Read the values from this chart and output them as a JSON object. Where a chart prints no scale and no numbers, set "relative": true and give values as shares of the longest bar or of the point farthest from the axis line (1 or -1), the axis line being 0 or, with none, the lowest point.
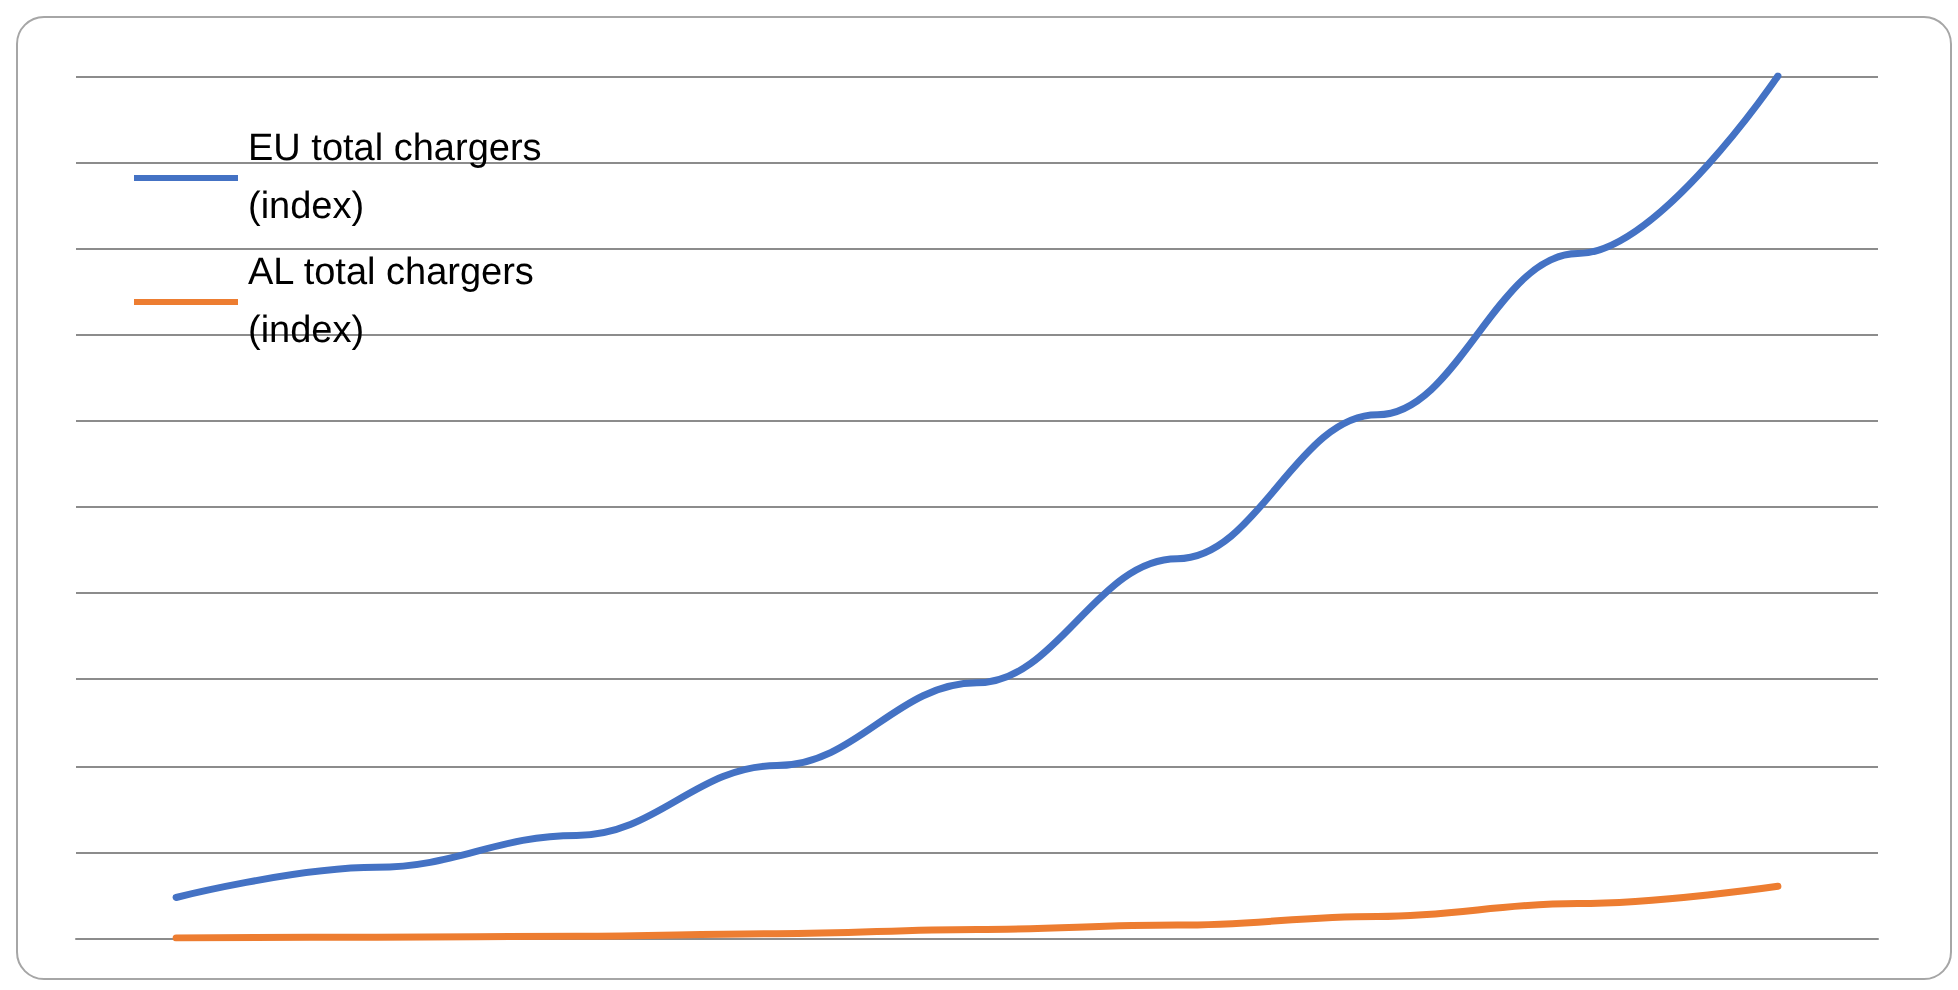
{
  "chart_data": {
    "type": "line",
    "relative": true,
    "categories": [
      null,
      null,
      null,
      null,
      null,
      null,
      null,
      null,
      null
    ],
    "series": [
      {
        "name": "EU total chargers (index)",
        "color": "#4472c4",
        "values": [
          0.047,
          0.082,
          0.119,
          0.2,
          0.296,
          0.44,
          0.607,
          0.794,
          1
        ]
      },
      {
        "name": "AL total chargers (index)",
        "color": "#ed7d31",
        "values": [
          0,
          0.001,
          0.002,
          0.005,
          0.01,
          0.015,
          0.025,
          0.04,
          0.06
        ]
      }
    ],
    "grid": "y",
    "legend": "top left",
    "marker": "none",
    "line_style": "solid"
  }
}
